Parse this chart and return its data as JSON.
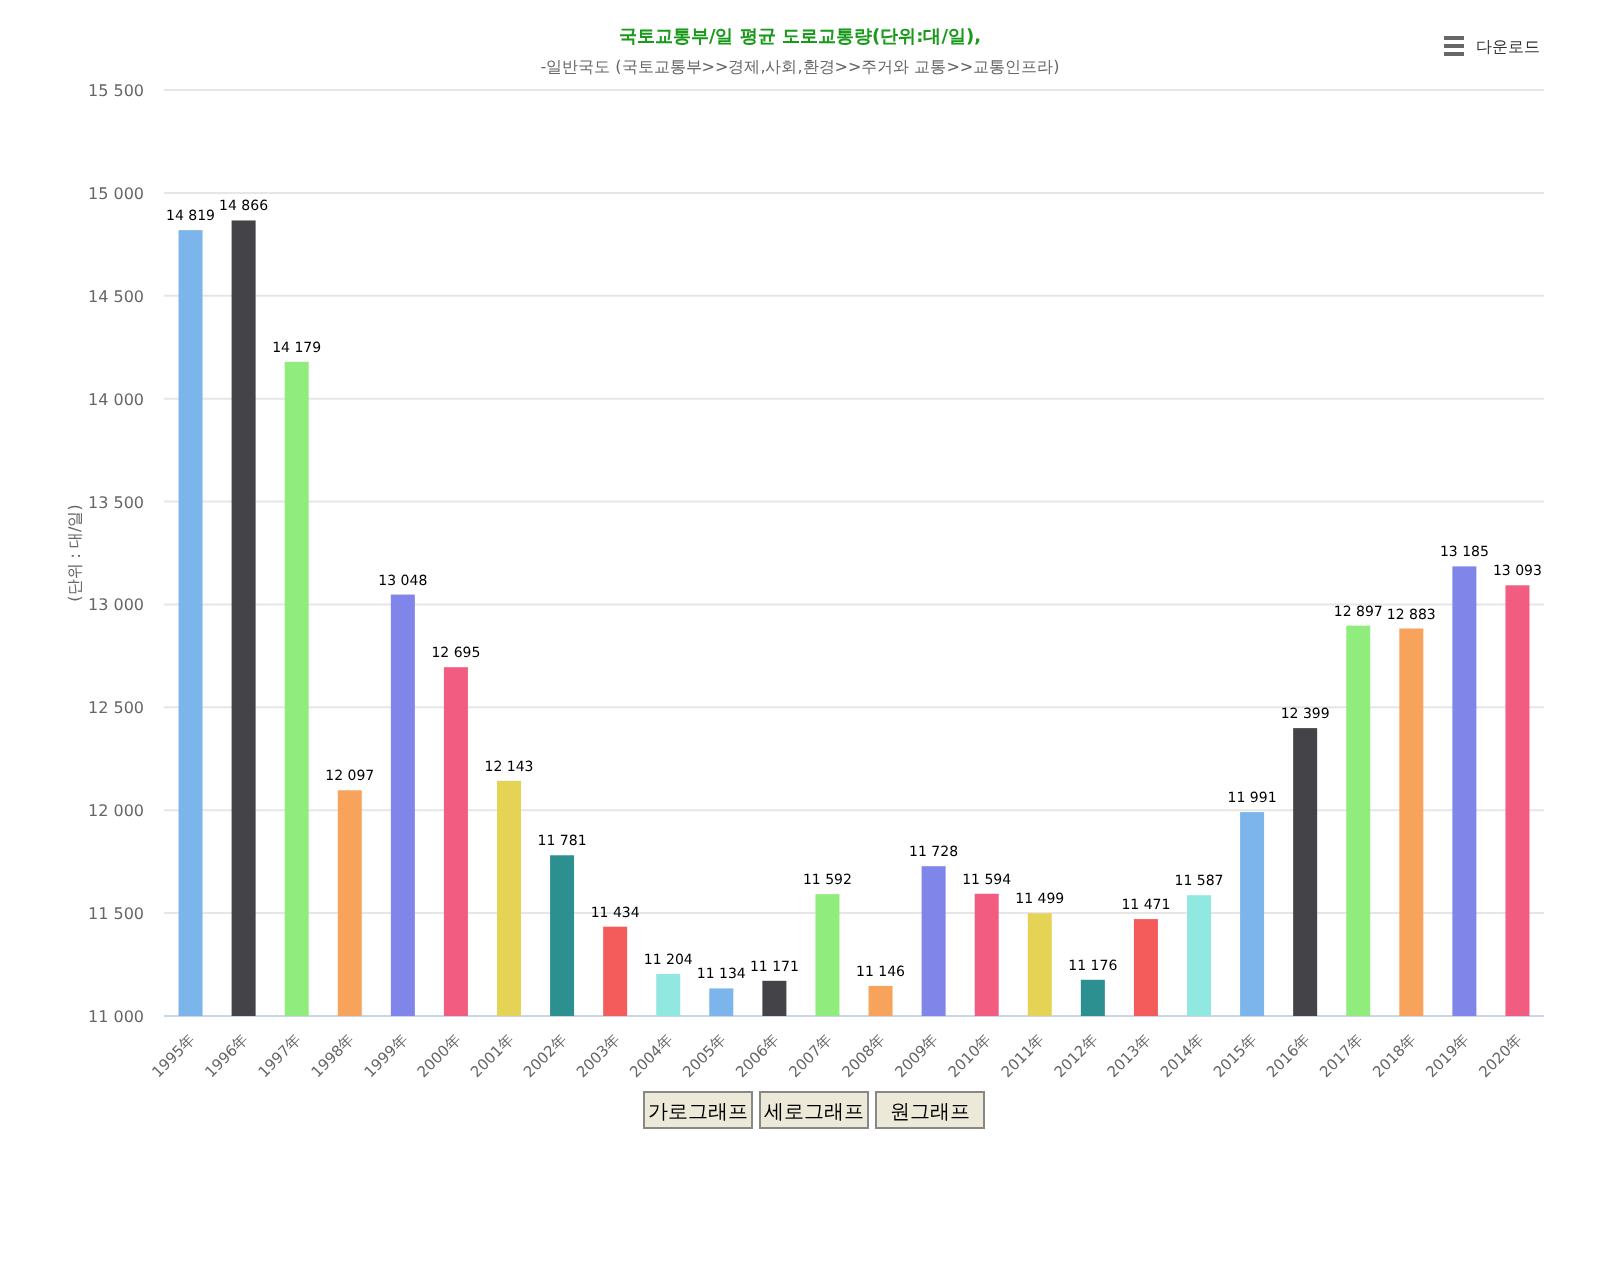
{
  "chart_data": {
    "type": "bar",
    "title": "국토교통부/일 평균 도로교통량(단위:대/일),",
    "subtitle": "-일반국도 (국토교통부>>경제,사회,환경>>주거와 교통>>교통인프라)",
    "ylabel": "(단위 : 대/일)",
    "categories": [
      "1995年",
      "1996年",
      "1997年",
      "1998年",
      "1999年",
      "2000年",
      "2001年",
      "2002年",
      "2003年",
      "2004年",
      "2005年",
      "2006年",
      "2007年",
      "2008年",
      "2009年",
      "2010年",
      "2011年",
      "2012年",
      "2013年",
      "2014年",
      "2015年",
      "2016年",
      "2017年",
      "2018年",
      "2019年",
      "2020年"
    ],
    "values": [
      14819,
      14866,
      14179,
      12097,
      13048,
      12695,
      12143,
      11781,
      11434,
      11204,
      11134,
      11171,
      11592,
      11146,
      11728,
      11594,
      11499,
      11176,
      11471,
      11587,
      11991,
      12399,
      12897,
      12883,
      13185,
      13093
    ],
    "value_labels": [
      "14 819",
      "14 866",
      "14 179",
      "12 097",
      "13 048",
      "12 695",
      "12 143",
      "11 781",
      "11 434",
      "11 204",
      "11 134",
      "11 171",
      "11 592",
      "11 146",
      "11 728",
      "11 594",
      "11 499",
      "11 176",
      "11 471",
      "11 587",
      "11 991",
      "12 399",
      "12 897",
      "12 883",
      "13 185",
      "13 093"
    ],
    "colors": [
      "#7cb5ec",
      "#434348",
      "#90ed7d",
      "#f7a35c",
      "#8085e9",
      "#f15c80",
      "#e4d354",
      "#2b908f",
      "#f45b5b",
      "#91e8e1",
      "#7cb5ec",
      "#434348",
      "#90ed7d",
      "#f7a35c",
      "#8085e9",
      "#f15c80",
      "#e4d354",
      "#2b908f",
      "#f45b5b",
      "#91e8e1",
      "#7cb5ec",
      "#434348",
      "#90ed7d",
      "#f7a35c",
      "#8085e9",
      "#f15c80"
    ],
    "ylim": [
      11000,
      15500
    ],
    "yticks": [
      {
        "value": 11000,
        "label": "11 000"
      },
      {
        "value": 11500,
        "label": "11 500"
      },
      {
        "value": 12000,
        "label": "12 000"
      },
      {
        "value": 12500,
        "label": "12 500"
      },
      {
        "value": 13000,
        "label": "13 000"
      },
      {
        "value": 13500,
        "label": "13 500"
      },
      {
        "value": 14000,
        "label": "14 000"
      },
      {
        "value": 14500,
        "label": "14 500"
      },
      {
        "value": 15000,
        "label": "15 000"
      },
      {
        "value": 15500,
        "label": "15 500"
      }
    ],
    "grid": "y",
    "annotations": [
      "다운로드",
      "가로그래프",
      "세로그래프",
      "원그래프"
    ]
  }
}
